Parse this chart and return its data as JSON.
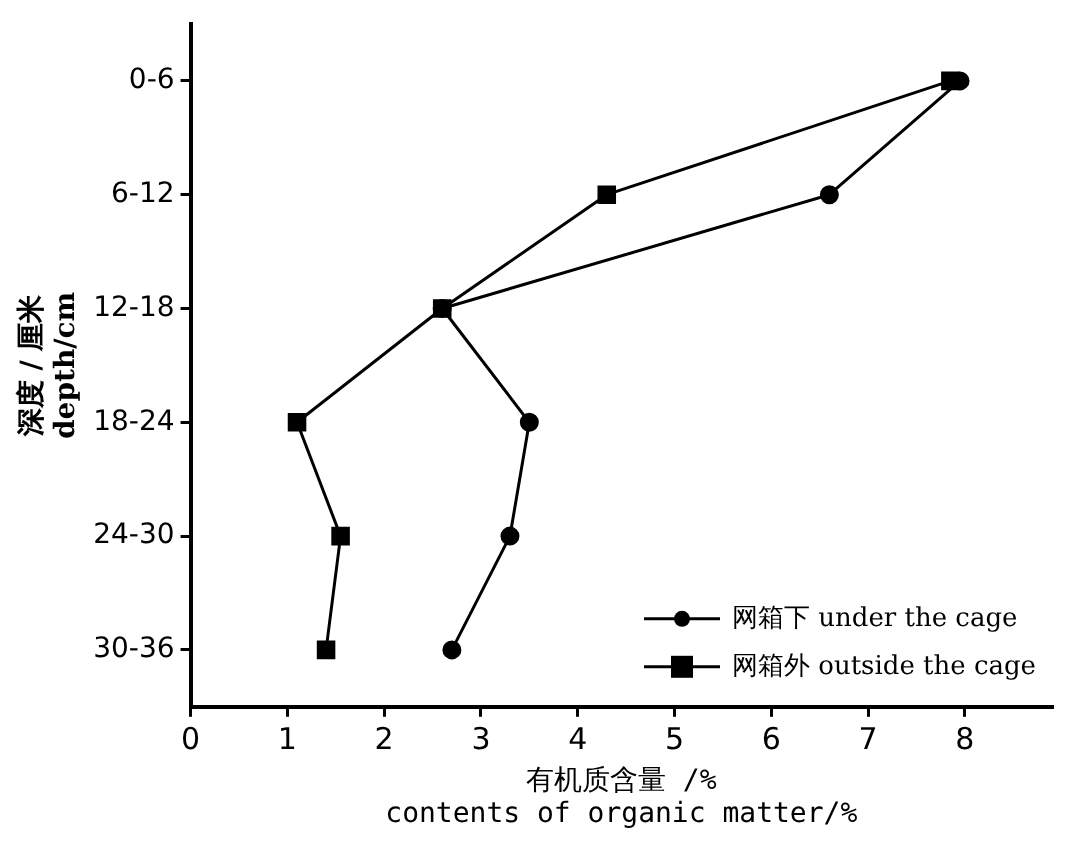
{
  "chart_data": {
    "type": "line",
    "xlabel": "有机质含量 /%\ncontents of organic matter/%",
    "ylabel": "深度 / 厘米\ndepth/cm",
    "categories": [
      "0-6",
      "6-12",
      "12-18",
      "18-24",
      "24-30",
      "30-36"
    ],
    "series": [
      {
        "name": "网箱下 under the cage",
        "color": "#000000",
        "marker": "circle",
        "values": [
          7.95,
          6.6,
          2.6,
          3.5,
          3.3,
          2.7
        ]
      },
      {
        "name": "网箱外 outside the cage",
        "color": "#000000",
        "marker": "square",
        "values": [
          7.85,
          4.3,
          2.6,
          1.1,
          1.55,
          1.4
        ]
      }
    ],
    "orientation": "horizontal",
    "xlim": [
      0,
      8.9
    ],
    "xticks": [
      0,
      1,
      2,
      3,
      4,
      5,
      6,
      7,
      8
    ],
    "grid": false,
    "legend": "bottom right",
    "line_style": "solid"
  }
}
